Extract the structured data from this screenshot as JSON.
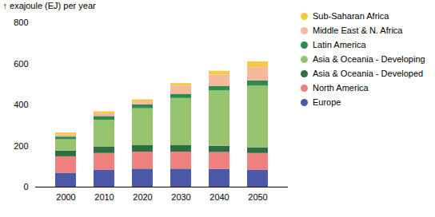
{
  "chart_data": {
    "type": "bar",
    "stacked": true,
    "ylabel": "exajoule (EJ) per year",
    "categories": [
      "2000",
      "2010",
      "2020",
      "2030",
      "2040",
      "2050"
    ],
    "series": [
      {
        "name": "Europe",
        "color": "#4a5aa8",
        "values": [
          68,
          82,
          88,
          88,
          87,
          82
        ]
      },
      {
        "name": "North America",
        "color": "#f08080",
        "values": [
          80,
          82,
          82,
          82,
          82,
          82
        ]
      },
      {
        "name": "Asia & Oceania - Developed",
        "color": "#2e6e44",
        "values": [
          28,
          32,
          32,
          32,
          30,
          28
        ]
      },
      {
        "name": "Asia & Oceania - Developing",
        "color": "#96c46e",
        "values": [
          55,
          130,
          180,
          230,
          270,
          300
        ]
      },
      {
        "name": "Latin America",
        "color": "#2e8b50",
        "values": [
          13,
          18,
          18,
          20,
          22,
          25
        ]
      },
      {
        "name": "Middle East & N. Africa",
        "color": "#f5b89a",
        "values": [
          10,
          13,
          15,
          40,
          55,
          65
        ]
      },
      {
        "name": "Sub-Saharan Africa",
        "color": "#f5c842",
        "values": [
          10,
          10,
          10,
          12,
          18,
          28
        ]
      }
    ],
    "ylim": [
      0,
      800
    ],
    "yticks": [
      0,
      200,
      400,
      600,
      800
    ],
    "grid": false,
    "legend": "right"
  }
}
